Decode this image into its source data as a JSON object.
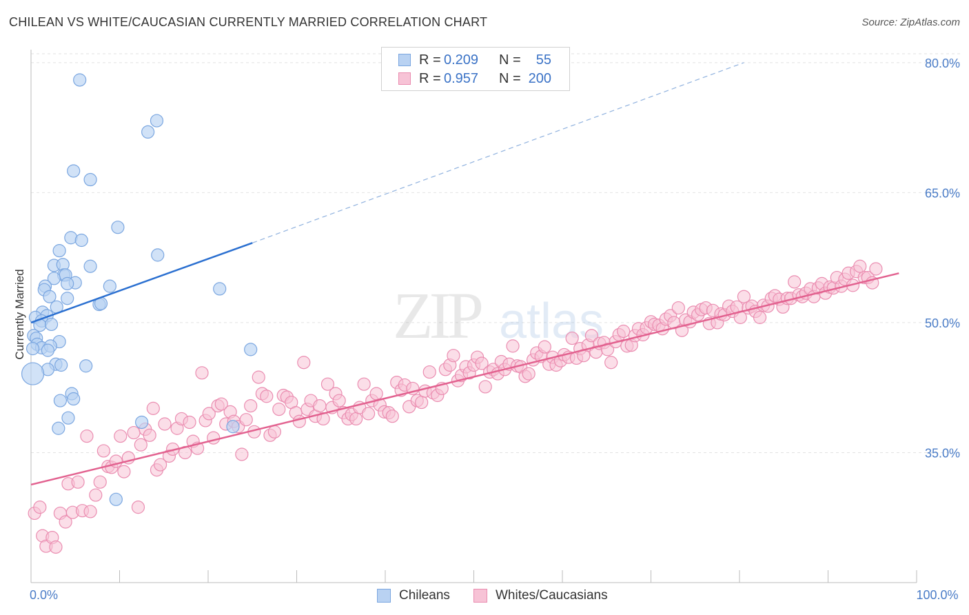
{
  "title": "CHILEAN VS WHITE/CAUCASIAN CURRENTLY MARRIED CORRELATION CHART",
  "source": "Source: ZipAtlas.com",
  "watermark": {
    "zip": "ZIP",
    "atlas": "atlas"
  },
  "stats": [
    {
      "r_label": "R =",
      "r_value": "0.209",
      "n_label": "N =",
      "n_value": "55",
      "color": "#7aa6e0",
      "fill": "#b9d2f2"
    },
    {
      "r_label": "R =",
      "r_value": "0.957",
      "n_label": "N =",
      "n_value": "200",
      "color": "#ea8cb0",
      "fill": "#f7c3d6"
    }
  ],
  "legend": [
    {
      "label": "Chileans",
      "color": "#7aa6e0",
      "fill": "#b9d2f2"
    },
    {
      "label": "Whites/Caucasians",
      "color": "#ea8cb0",
      "fill": "#f7c3d6"
    }
  ],
  "chart_data": {
    "type": "scatter",
    "ylabel": "Currently Married",
    "xlim": [
      0,
      100
    ],
    "ylim": [
      20,
      81.5
    ],
    "x_tick_labels": [
      {
        "value": 0,
        "label": "0.0%"
      },
      {
        "value": 100,
        "label": "100.0%"
      }
    ],
    "y_tick_labels": [
      {
        "value": 80,
        "label": "80.0%"
      },
      {
        "value": 65,
        "label": "65.0%"
      },
      {
        "value": 50,
        "label": "50.0%"
      },
      {
        "value": 35,
        "label": "35.0%"
      }
    ],
    "colors": {
      "blue_line": "#2a6fd0",
      "pink_line": "#e2618f",
      "axis_label": "#4a7cc7"
    },
    "series": [
      {
        "name": "Chileans",
        "color": "#7aa6e0",
        "fill": "#b9d2f2",
        "trend": {
          "x0": 0,
          "y0": 50.0,
          "x1": 25,
          "y1": 59.2,
          "dash_to_x": 80.5,
          "dash_to_y": 80.0
        },
        "points": [
          [
            5.5,
            78.0
          ],
          [
            14.2,
            73.3
          ],
          [
            13.2,
            72.0
          ],
          [
            4.8,
            67.5
          ],
          [
            6.7,
            66.5
          ],
          [
            9.8,
            61.0
          ],
          [
            4.5,
            59.8
          ],
          [
            5.7,
            59.5
          ],
          [
            14.3,
            57.8
          ],
          [
            3.2,
            58.3
          ],
          [
            2.6,
            56.6
          ],
          [
            3.6,
            56.7
          ],
          [
            6.7,
            56.5
          ],
          [
            3.7,
            55.5
          ],
          [
            3.9,
            55.5
          ],
          [
            2.6,
            55.1
          ],
          [
            5.0,
            54.6
          ],
          [
            4.1,
            54.5
          ],
          [
            8.9,
            54.2
          ],
          [
            1.6,
            54.2
          ],
          [
            1.5,
            53.8
          ],
          [
            21.3,
            53.9
          ],
          [
            2.1,
            53.0
          ],
          [
            4.1,
            52.8
          ],
          [
            7.7,
            52.1
          ],
          [
            7.9,
            52.2
          ],
          [
            2.9,
            51.8
          ],
          [
            1.3,
            51.2
          ],
          [
            0.5,
            50.6
          ],
          [
            1.8,
            50.8
          ],
          [
            1.2,
            50.2
          ],
          [
            1.0,
            49.7
          ],
          [
            2.3,
            49.8
          ],
          [
            0.3,
            48.5
          ],
          [
            0.6,
            48.2
          ],
          [
            3.2,
            47.8
          ],
          [
            0.7,
            47.5
          ],
          [
            1.2,
            47.1
          ],
          [
            2.2,
            47.3
          ],
          [
            0.2,
            47.0
          ],
          [
            1.9,
            46.8
          ],
          [
            24.8,
            46.9
          ],
          [
            2.8,
            45.2
          ],
          [
            3.4,
            45.1
          ],
          [
            6.2,
            45.0
          ],
          [
            1.9,
            44.6
          ],
          [
            0.2,
            44.1
          ],
          [
            4.6,
            41.8
          ],
          [
            3.3,
            41.0
          ],
          [
            4.8,
            41.2
          ],
          [
            4.2,
            39.0
          ],
          [
            12.5,
            38.5
          ],
          [
            3.1,
            37.8
          ],
          [
            9.6,
            29.6
          ],
          [
            22.8,
            38.0
          ]
        ]
      },
      {
        "name": "Whites/Caucasians",
        "color": "#ea8cb0",
        "fill": "#f7c3d6",
        "trend": {
          "x0": 0,
          "y0": 31.3,
          "x1": 98,
          "y1": 55.7
        },
        "points": [
          [
            0.4,
            28.0
          ],
          [
            1.0,
            28.7
          ],
          [
            1.3,
            25.4
          ],
          [
            1.7,
            24.2
          ],
          [
            2.4,
            25.2
          ],
          [
            2.8,
            24.1
          ],
          [
            3.3,
            28.0
          ],
          [
            3.9,
            27.0
          ],
          [
            4.2,
            31.4
          ],
          [
            4.7,
            28.1
          ],
          [
            5.3,
            31.6
          ],
          [
            5.8,
            28.3
          ],
          [
            6.3,
            36.9
          ],
          [
            6.7,
            28.2
          ],
          [
            7.3,
            30.1
          ],
          [
            7.8,
            31.6
          ],
          [
            8.2,
            35.2
          ],
          [
            8.7,
            33.4
          ],
          [
            9.1,
            33.3
          ],
          [
            9.6,
            34.0
          ],
          [
            10.1,
            36.9
          ],
          [
            10.5,
            32.8
          ],
          [
            11.0,
            34.4
          ],
          [
            11.6,
            37.3
          ],
          [
            12.1,
            28.7
          ],
          [
            12.4,
            35.9
          ],
          [
            12.9,
            37.7
          ],
          [
            13.4,
            37.0
          ],
          [
            13.8,
            40.1
          ],
          [
            14.2,
            33.0
          ],
          [
            14.6,
            33.6
          ],
          [
            15.1,
            38.3
          ],
          [
            15.6,
            34.6
          ],
          [
            16.0,
            35.4
          ],
          [
            16.5,
            37.8
          ],
          [
            17.0,
            38.9
          ],
          [
            17.4,
            35.0
          ],
          [
            17.9,
            38.5
          ],
          [
            18.3,
            36.3
          ],
          [
            18.8,
            35.5
          ],
          [
            19.3,
            44.2
          ],
          [
            19.7,
            38.7
          ],
          [
            20.1,
            39.5
          ],
          [
            20.6,
            36.7
          ],
          [
            21.1,
            40.4
          ],
          [
            21.5,
            40.6
          ],
          [
            22.0,
            38.3
          ],
          [
            22.5,
            39.7
          ],
          [
            22.9,
            38.6
          ],
          [
            23.4,
            38.0
          ],
          [
            23.8,
            34.8
          ],
          [
            24.3,
            38.8
          ],
          [
            24.8,
            40.4
          ],
          [
            25.2,
            37.4
          ],
          [
            25.7,
            43.7
          ],
          [
            26.1,
            41.8
          ],
          [
            26.6,
            41.5
          ],
          [
            27.0,
            37.0
          ],
          [
            27.5,
            37.4
          ],
          [
            28.0,
            40.0
          ],
          [
            28.5,
            41.6
          ],
          [
            28.9,
            41.4
          ],
          [
            29.4,
            40.8
          ],
          [
            29.9,
            39.6
          ],
          [
            30.3,
            38.6
          ],
          [
            30.8,
            45.4
          ],
          [
            31.2,
            40.0
          ],
          [
            31.6,
            41.0
          ],
          [
            32.1,
            39.2
          ],
          [
            32.6,
            40.4
          ],
          [
            33.0,
            38.9
          ],
          [
            33.5,
            42.9
          ],
          [
            34.0,
            40.2
          ],
          [
            34.4,
            41.8
          ],
          [
            34.8,
            41.0
          ],
          [
            35.3,
            39.6
          ],
          [
            35.8,
            38.9
          ],
          [
            36.2,
            39.4
          ],
          [
            36.7,
            38.9
          ],
          [
            37.1,
            40.2
          ],
          [
            37.6,
            42.9
          ],
          [
            38.1,
            39.5
          ],
          [
            38.5,
            41.0
          ],
          [
            39.0,
            41.8
          ],
          [
            39.4,
            40.5
          ],
          [
            39.9,
            39.7
          ],
          [
            40.4,
            39.6
          ],
          [
            40.8,
            39.2
          ],
          [
            41.3,
            43.1
          ],
          [
            41.8,
            42.2
          ],
          [
            42.2,
            42.8
          ],
          [
            42.7,
            40.3
          ],
          [
            43.1,
            42.4
          ],
          [
            43.6,
            41.0
          ],
          [
            44.1,
            40.8
          ],
          [
            44.5,
            42.1
          ],
          [
            45.0,
            44.3
          ],
          [
            45.4,
            41.9
          ],
          [
            45.9,
            41.6
          ],
          [
            46.4,
            42.4
          ],
          [
            46.8,
            44.6
          ],
          [
            47.3,
            45.1
          ],
          [
            47.7,
            46.2
          ],
          [
            48.2,
            43.3
          ],
          [
            48.6,
            43.9
          ],
          [
            49.1,
            44.9
          ],
          [
            49.5,
            44.2
          ],
          [
            50.0,
            45.1
          ],
          [
            50.4,
            46.0
          ],
          [
            50.9,
            45.3
          ],
          [
            51.3,
            42.6
          ],
          [
            51.8,
            44.3
          ],
          [
            52.2,
            44.6
          ],
          [
            52.7,
            44.1
          ],
          [
            53.1,
            45.5
          ],
          [
            53.5,
            44.6
          ],
          [
            54.0,
            45.2
          ],
          [
            54.4,
            47.3
          ],
          [
            54.9,
            45.0
          ],
          [
            55.3,
            44.9
          ],
          [
            55.8,
            43.8
          ],
          [
            56.2,
            44.1
          ],
          [
            56.7,
            45.7
          ],
          [
            57.1,
            46.5
          ],
          [
            57.6,
            46.1
          ],
          [
            58.0,
            47.2
          ],
          [
            58.5,
            45.2
          ],
          [
            58.9,
            46.0
          ],
          [
            59.3,
            45.1
          ],
          [
            59.8,
            45.6
          ],
          [
            60.2,
            46.3
          ],
          [
            60.7,
            46.0
          ],
          [
            61.1,
            48.2
          ],
          [
            61.6,
            45.9
          ],
          [
            62.0,
            47.0
          ],
          [
            62.4,
            46.2
          ],
          [
            62.9,
            47.4
          ],
          [
            63.3,
            48.5
          ],
          [
            63.8,
            46.6
          ],
          [
            64.2,
            47.6
          ],
          [
            64.7,
            47.7
          ],
          [
            65.1,
            46.9
          ],
          [
            65.5,
            45.4
          ],
          [
            66.0,
            47.8
          ],
          [
            66.4,
            48.6
          ],
          [
            66.9,
            49.0
          ],
          [
            67.3,
            47.3
          ],
          [
            67.8,
            47.4
          ],
          [
            68.2,
            48.5
          ],
          [
            68.6,
            49.3
          ],
          [
            69.1,
            48.6
          ],
          [
            69.5,
            49.4
          ],
          [
            70.0,
            50.1
          ],
          [
            70.4,
            49.8
          ],
          [
            70.9,
            49.7
          ],
          [
            71.3,
            49.3
          ],
          [
            71.7,
            50.4
          ],
          [
            72.2,
            50.8
          ],
          [
            72.6,
            50.0
          ],
          [
            73.1,
            51.7
          ],
          [
            73.5,
            49.1
          ],
          [
            73.9,
            50.3
          ],
          [
            74.4,
            50.1
          ],
          [
            74.8,
            51.2
          ],
          [
            75.3,
            50.9
          ],
          [
            75.7,
            51.5
          ],
          [
            76.2,
            51.7
          ],
          [
            76.6,
            49.9
          ],
          [
            77.0,
            51.4
          ],
          [
            77.5,
            50.0
          ],
          [
            77.9,
            51.0
          ],
          [
            78.3,
            50.9
          ],
          [
            78.8,
            51.9
          ],
          [
            79.2,
            51.3
          ],
          [
            79.7,
            51.8
          ],
          [
            80.1,
            50.6
          ],
          [
            80.5,
            53.0
          ],
          [
            81.0,
            51.7
          ],
          [
            81.4,
            51.9
          ],
          [
            81.8,
            51.3
          ],
          [
            82.3,
            50.6
          ],
          [
            82.7,
            52.0
          ],
          [
            83.2,
            51.9
          ],
          [
            83.6,
            52.8
          ],
          [
            84.0,
            53.1
          ],
          [
            84.5,
            52.7
          ],
          [
            84.9,
            51.8
          ],
          [
            85.4,
            52.8
          ],
          [
            85.8,
            52.8
          ],
          [
            86.2,
            54.7
          ],
          [
            86.7,
            53.2
          ],
          [
            87.1,
            53.0
          ],
          [
            87.5,
            53.4
          ],
          [
            88.0,
            53.9
          ],
          [
            88.4,
            53.0
          ],
          [
            88.9,
            54.0
          ],
          [
            89.3,
            54.5
          ],
          [
            89.7,
            53.4
          ],
          [
            90.2,
            54.1
          ],
          [
            90.6,
            54.0
          ],
          [
            91.0,
            55.2
          ],
          [
            91.5,
            54.2
          ],
          [
            91.9,
            55.0
          ],
          [
            92.3,
            55.7
          ],
          [
            92.8,
            54.3
          ],
          [
            93.2,
            55.9
          ],
          [
            93.6,
            56.5
          ],
          [
            94.1,
            55.2
          ],
          [
            94.5,
            55.2
          ],
          [
            95.0,
            54.6
          ],
          [
            95.4,
            56.2
          ]
        ]
      }
    ]
  }
}
